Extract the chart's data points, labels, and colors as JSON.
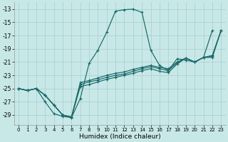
{
  "bg_color": "#c8e8e8",
  "grid_color": "#a8cccc",
  "line_color": "#1a6868",
  "xlabel": "Humidex (Indice chaleur)",
  "xlim": [
    -0.5,
    23.5
  ],
  "ylim": [
    -30.5,
    -12.0
  ],
  "yticks": [
    -13,
    -15,
    -17,
    -19,
    -21,
    -23,
    -25,
    -27,
    -29
  ],
  "xticks": [
    0,
    1,
    2,
    3,
    4,
    5,
    6,
    7,
    8,
    9,
    10,
    11,
    12,
    13,
    14,
    15,
    16,
    17,
    18,
    19,
    20,
    21,
    22,
    23
  ],
  "line1_x": [
    0,
    1,
    2,
    3,
    4,
    5,
    6,
    7,
    8,
    9,
    10,
    11,
    12,
    13,
    14,
    15,
    16,
    17,
    18,
    19,
    20,
    21,
    22
  ],
  "line1_y": [
    -25.0,
    -25.3,
    -25.0,
    -27.0,
    -28.8,
    -29.2,
    -29.4,
    -26.5,
    -21.2,
    -19.2,
    -16.5,
    -13.3,
    -13.1,
    -13.0,
    -13.5,
    -19.2,
    -21.5,
    -22.3,
    -20.5,
    -20.7,
    -21.0,
    -20.3,
    -16.2
  ],
  "line2_x": [
    0,
    1,
    2,
    3,
    4,
    5,
    6,
    7,
    8,
    9,
    10,
    11,
    12,
    13,
    14,
    15,
    16,
    17,
    18,
    19,
    20,
    21,
    22,
    23
  ],
  "line2_y": [
    -25.0,
    -25.3,
    -25.0,
    -26.0,
    -27.5,
    -29.0,
    -29.3,
    -24.7,
    -24.4,
    -24.0,
    -23.6,
    -23.3,
    -23.0,
    -22.7,
    -22.3,
    -22.0,
    -22.4,
    -22.6,
    -21.3,
    -20.4,
    -21.0,
    -20.3,
    -20.3,
    -16.2
  ],
  "line3_x": [
    0,
    1,
    2,
    3,
    4,
    5,
    6,
    7,
    8,
    9,
    10,
    11,
    12,
    13,
    14,
    15,
    16,
    17,
    18,
    19,
    20,
    21,
    22,
    23
  ],
  "line3_y": [
    -25.0,
    -25.3,
    -25.0,
    -26.0,
    -27.5,
    -29.0,
    -29.3,
    -24.4,
    -24.0,
    -23.7,
    -23.3,
    -23.0,
    -22.8,
    -22.4,
    -22.0,
    -21.7,
    -22.0,
    -22.3,
    -21.1,
    -20.4,
    -21.0,
    -20.3,
    -20.1,
    -16.2
  ],
  "line4_x": [
    0,
    1,
    2,
    3,
    4,
    5,
    6,
    7,
    8,
    9,
    10,
    11,
    12,
    13,
    14,
    15,
    16,
    17,
    18,
    19,
    20,
    21,
    22,
    23
  ],
  "line4_y": [
    -25.0,
    -25.3,
    -25.0,
    -26.0,
    -27.5,
    -29.0,
    -29.3,
    -24.1,
    -23.8,
    -23.4,
    -23.0,
    -22.7,
    -22.5,
    -22.1,
    -21.8,
    -21.5,
    -21.8,
    -22.0,
    -21.0,
    -20.4,
    -21.0,
    -20.3,
    -20.0,
    -16.2
  ]
}
